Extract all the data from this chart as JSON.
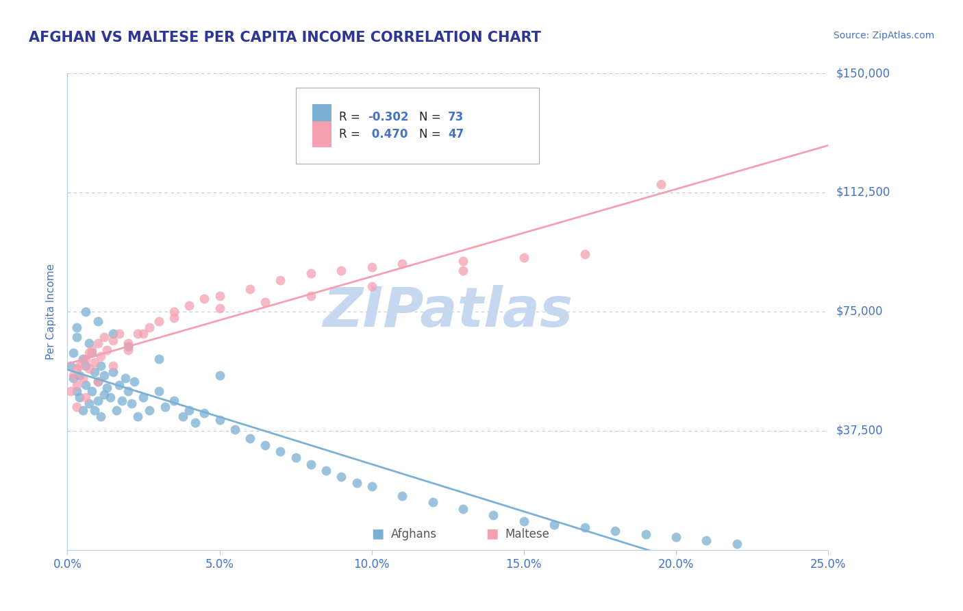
{
  "title": "AFGHAN VS MALTESE PER CAPITA INCOME CORRELATION CHART",
  "source_text": "Source: ZipAtlas.com",
  "ylabel": "Per Capita Income",
  "xlim": [
    0.0,
    0.25
  ],
  "ylim": [
    0,
    150000
  ],
  "yticks": [
    0,
    37500,
    75000,
    112500,
    150000
  ],
  "ytick_labels": [
    "",
    "$37,500",
    "$75,000",
    "$112,500",
    "$150,000"
  ],
  "xticks": [
    0.0,
    0.05,
    0.1,
    0.15,
    0.2,
    0.25
  ],
  "xtick_labels": [
    "0.0%",
    "5.0%",
    "10.0%",
    "15.0%",
    "20.0%",
    "25.0%"
  ],
  "title_color": "#2d3694",
  "tick_color": "#4472c4",
  "grid_color": "#b8cce4",
  "watermark_color": "#c5d8f0",
  "afghans_color": "#7bafd4",
  "maltese_color": "#f4a0b0",
  "afghans_R": -0.302,
  "afghans_N": 73,
  "maltese_R": 0.47,
  "maltese_N": 47,
  "background_color": "#ffffff",
  "afghans_scatter_x": [
    0.001,
    0.002,
    0.002,
    0.003,
    0.003,
    0.004,
    0.004,
    0.005,
    0.005,
    0.006,
    0.006,
    0.007,
    0.007,
    0.008,
    0.008,
    0.009,
    0.009,
    0.01,
    0.01,
    0.011,
    0.011,
    0.012,
    0.012,
    0.013,
    0.014,
    0.015,
    0.016,
    0.017,
    0.018,
    0.019,
    0.02,
    0.021,
    0.022,
    0.023,
    0.025,
    0.027,
    0.03,
    0.032,
    0.035,
    0.038,
    0.04,
    0.042,
    0.045,
    0.05,
    0.055,
    0.06,
    0.065,
    0.07,
    0.075,
    0.08,
    0.085,
    0.09,
    0.095,
    0.1,
    0.11,
    0.12,
    0.13,
    0.14,
    0.15,
    0.16,
    0.17,
    0.18,
    0.19,
    0.2,
    0.21,
    0.22,
    0.003,
    0.006,
    0.01,
    0.015,
    0.02,
    0.03,
    0.05
  ],
  "afghans_scatter_y": [
    58000,
    62000,
    54000,
    67000,
    50000,
    55000,
    48000,
    60000,
    44000,
    58000,
    52000,
    65000,
    46000,
    62000,
    50000,
    56000,
    44000,
    53000,
    47000,
    58000,
    42000,
    55000,
    49000,
    51000,
    48000,
    56000,
    44000,
    52000,
    47000,
    54000,
    50000,
    46000,
    53000,
    42000,
    48000,
    44000,
    50000,
    45000,
    47000,
    42000,
    44000,
    40000,
    43000,
    41000,
    38000,
    35000,
    33000,
    31000,
    29000,
    27000,
    25000,
    23000,
    21000,
    20000,
    17000,
    15000,
    13000,
    11000,
    9000,
    8000,
    7000,
    6000,
    5000,
    4000,
    3000,
    2000,
    70000,
    75000,
    72000,
    68000,
    64000,
    60000,
    55000
  ],
  "maltese_scatter_x": [
    0.001,
    0.002,
    0.003,
    0.004,
    0.005,
    0.006,
    0.007,
    0.008,
    0.009,
    0.01,
    0.011,
    0.013,
    0.015,
    0.017,
    0.02,
    0.023,
    0.027,
    0.03,
    0.035,
    0.04,
    0.045,
    0.05,
    0.06,
    0.07,
    0.08,
    0.09,
    0.1,
    0.11,
    0.13,
    0.15,
    0.17,
    0.003,
    0.006,
    0.01,
    0.015,
    0.02,
    0.025,
    0.035,
    0.05,
    0.065,
    0.08,
    0.1,
    0.13,
    0.003,
    0.007,
    0.012,
    0.195
  ],
  "maltese_scatter_y": [
    50000,
    55000,
    52000,
    58000,
    54000,
    60000,
    57000,
    63000,
    59000,
    65000,
    61000,
    63000,
    66000,
    68000,
    65000,
    68000,
    70000,
    72000,
    75000,
    77000,
    79000,
    80000,
    82000,
    85000,
    87000,
    88000,
    89000,
    90000,
    91000,
    92000,
    93000,
    45000,
    48000,
    53000,
    58000,
    63000,
    68000,
    73000,
    76000,
    78000,
    80000,
    83000,
    88000,
    57000,
    62000,
    67000,
    115000
  ]
}
